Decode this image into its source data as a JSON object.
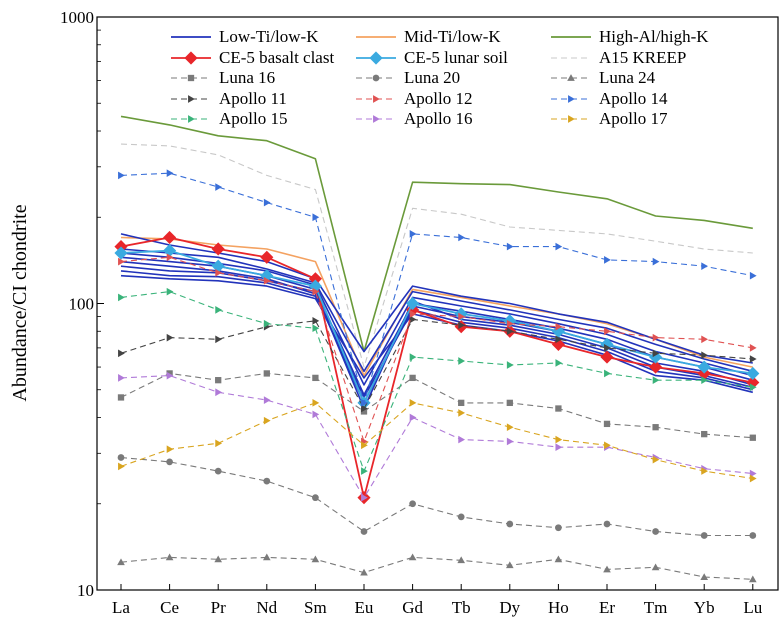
{
  "chart_data": {
    "type": "line",
    "title": "",
    "xlabel": "",
    "ylabel": "Abundance/CI chondrite",
    "yscale": "log",
    "ylim": [
      10,
      1000
    ],
    "yticks": [
      "10",
      "100",
      "1000"
    ],
    "grid": false,
    "legend_position": "top",
    "categories": [
      "La",
      "Ce",
      "Pr",
      "Nd",
      "Sm",
      "Eu",
      "Gd",
      "Tb",
      "Dy",
      "Ho",
      "Er",
      "Tm",
      "Yb",
      "Lu"
    ],
    "series": [
      {
        "name": "High-Al/high-K",
        "color": "#6a9a3a",
        "style": "solid",
        "marker": "none",
        "values": [
          450,
          420,
          385,
          370,
          320,
          68,
          265,
          262,
          260,
          245,
          232,
          202,
          195,
          183
        ]
      },
      {
        "name": "A15 KREEP",
        "color": "#c8c8c8",
        "style": "dashed",
        "marker": "none",
        "values": [
          360,
          355,
          330,
          280,
          250,
          60,
          215,
          205,
          185,
          180,
          175,
          165,
          155,
          150
        ]
      },
      {
        "name": "Mid-Ti/low-K",
        "color": "#f4a261",
        "style": "solid",
        "marker": "none",
        "values": [
          170,
          168,
          160,
          155,
          140,
          56,
          112,
          105,
          98,
          92,
          85,
          75,
          65,
          60
        ]
      },
      {
        "name": "Low-Ti/low-K",
        "color": "#2233bb",
        "style": "solid",
        "marker": "none",
        "group": "Low-Ti/low-K",
        "values": [
          175,
          160,
          150,
          140,
          122,
          68,
          115,
          106,
          100,
          92,
          86,
          75,
          66,
          62
        ]
      },
      {
        "name": "",
        "color": "#2233bb",
        "style": "solid",
        "marker": "none",
        "group": "Low-Ti/low-K",
        "values": [
          155,
          150,
          145,
          132,
          118,
          58,
          110,
          102,
          95,
          88,
          82,
          72,
          64,
          58
        ]
      },
      {
        "name": "",
        "color": "#2233bb",
        "style": "solid",
        "marker": "none",
        "group": "Low-Ti/low-K",
        "values": [
          150,
          145,
          138,
          130,
          116,
          52,
          105,
          98,
          92,
          85,
          78,
          68,
          62,
          56
        ]
      },
      {
        "name": "",
        "color": "#2233bb",
        "style": "solid",
        "marker": "none",
        "group": "Low-Ti/low-K",
        "values": [
          145,
          140,
          135,
          125,
          112,
          48,
          100,
          94,
          88,
          82,
          75,
          65,
          60,
          54
        ]
      },
      {
        "name": "",
        "color": "#2233bb",
        "style": "solid",
        "marker": "none",
        "group": "Low-Ti/low-K",
        "values": [
          140,
          135,
          130,
          122,
          108,
          45,
          98,
          90,
          86,
          80,
          72,
          62,
          58,
          52
        ]
      },
      {
        "name": "",
        "color": "#2233bb",
        "style": "solid",
        "marker": "none",
        "group": "Low-Ti/low-K",
        "values": [
          135,
          130,
          128,
          120,
          110,
          43,
          102,
          88,
          84,
          78,
          70,
          60,
          56,
          51
        ]
      },
      {
        "name": "",
        "color": "#2233bb",
        "style": "solid",
        "marker": "none",
        "group": "Low-Ti/low-K",
        "values": [
          130,
          125,
          124,
          118,
          106,
          47,
          95,
          86,
          82,
          76,
          68,
          58,
          55,
          50
        ]
      },
      {
        "name": "",
        "color": "#2233bb",
        "style": "solid",
        "marker": "none",
        "group": "Low-Ti/low-K",
        "values": [
          125,
          122,
          120,
          115,
          104,
          55,
          92,
          84,
          80,
          74,
          66,
          56,
          54,
          49
        ]
      },
      {
        "name": "CE-5 basalt clast",
        "color": "#e8262a",
        "style": "solid",
        "marker": "diamond",
        "values": [
          158,
          170,
          155,
          145,
          122,
          21,
          95,
          83,
          80,
          72,
          65,
          60,
          57,
          53
        ]
      },
      {
        "name": "CE-5 lunar soil",
        "color": "#3aaae0",
        "style": "solid",
        "marker": "diamond",
        "values": [
          150,
          153,
          135,
          125,
          115,
          45,
          100,
          92,
          87,
          80,
          72,
          65,
          60,
          57
        ]
      },
      {
        "name": "Luna 16",
        "color": "#7a7a7a",
        "style": "dashed",
        "marker": "square",
        "values": [
          47,
          57,
          54,
          57,
          55,
          42,
          55,
          45,
          45,
          43,
          38,
          37,
          35,
          34
        ]
      },
      {
        "name": "Luna 20",
        "color": "#7a7a7a",
        "style": "dashed",
        "marker": "circle",
        "values": [
          29,
          28,
          26,
          24,
          21,
          16,
          20,
          18,
          17,
          16.5,
          17,
          16,
          15.5,
          15.5
        ]
      },
      {
        "name": "Luna 24",
        "color": "#7a7a7a",
        "style": "dashed",
        "marker": "triangle-up",
        "values": [
          12.5,
          13,
          12.8,
          13,
          12.8,
          11.5,
          13,
          12.7,
          12.2,
          12.8,
          11.8,
          12,
          11.1,
          10.9
        ]
      },
      {
        "name": "Apollo 11",
        "color": "#444444",
        "style": "dashed",
        "marker": "triangle-right",
        "values": [
          67,
          76,
          75,
          83,
          87,
          43,
          88,
          84,
          80,
          75,
          70,
          67,
          66,
          64
        ]
      },
      {
        "name": "Apollo 12",
        "color": "#e05252",
        "style": "dashed",
        "marker": "triangle-right",
        "values": [
          140,
          145,
          128,
          120,
          110,
          33,
          92,
          90,
          85,
          83,
          80,
          76,
          75,
          70
        ]
      },
      {
        "name": "Apollo 14",
        "color": "#3a6fd8",
        "style": "dashed",
        "marker": "triangle-right",
        "values": [
          280,
          285,
          255,
          225,
          200,
          45,
          175,
          170,
          158,
          158,
          142,
          140,
          135,
          125
        ]
      },
      {
        "name": "Apollo 15",
        "color": "#3ab37a",
        "style": "dashed",
        "marker": "triangle-right",
        "values": [
          105,
          110,
          95,
          85,
          82,
          26,
          65,
          63,
          61,
          62,
          57,
          54,
          54,
          51
        ]
      },
      {
        "name": "Apollo 16",
        "color": "#b07ad8",
        "style": "dashed",
        "marker": "triangle-right",
        "values": [
          55,
          56,
          49,
          46,
          41,
          21,
          40,
          33.5,
          33,
          31.5,
          31.5,
          29,
          26.5,
          25.5
        ]
      },
      {
        "name": "Apollo 17",
        "color": "#d9a520",
        "style": "dashed",
        "marker": "triangle-right",
        "values": [
          27,
          31,
          32.5,
          39,
          45,
          32,
          45,
          41.5,
          37,
          33.5,
          32,
          28.5,
          26,
          24.5
        ]
      }
    ],
    "legend": [
      {
        "label": "Low-Ti/low-K",
        "color": "#2233bb",
        "style": "solid",
        "marker": "none"
      },
      {
        "label": "Mid-Ti/low-K",
        "color": "#f4a261",
        "style": "solid",
        "marker": "none"
      },
      {
        "label": "High-Al/high-K",
        "color": "#6a9a3a",
        "style": "solid",
        "marker": "none"
      },
      {
        "label": "CE-5 basalt clast",
        "color": "#e8262a",
        "style": "solid",
        "marker": "diamond"
      },
      {
        "label": "CE-5 lunar soil",
        "color": "#3aaae0",
        "style": "solid",
        "marker": "diamond"
      },
      {
        "label": "A15 KREEP",
        "color": "#c8c8c8",
        "style": "dashed",
        "marker": "none"
      },
      {
        "label": "Luna 16",
        "color": "#7a7a7a",
        "style": "dashed",
        "marker": "square"
      },
      {
        "label": "Luna 20",
        "color": "#7a7a7a",
        "style": "dashed",
        "marker": "circle"
      },
      {
        "label": "Luna 24",
        "color": "#7a7a7a",
        "style": "dashed",
        "marker": "triangle-up"
      },
      {
        "label": "Apollo 11",
        "color": "#444444",
        "style": "dashed",
        "marker": "triangle-right"
      },
      {
        "label": "Apollo 12",
        "color": "#e05252",
        "style": "dashed",
        "marker": "triangle-right"
      },
      {
        "label": "Apollo 14",
        "color": "#3a6fd8",
        "style": "dashed",
        "marker": "triangle-right"
      },
      {
        "label": "Apollo 15",
        "color": "#3ab37a",
        "style": "dashed",
        "marker": "triangle-right"
      },
      {
        "label": "Apollo 16",
        "color": "#b07ad8",
        "style": "dashed",
        "marker": "triangle-right"
      },
      {
        "label": "Apollo 17",
        "color": "#d9a520",
        "style": "dashed",
        "marker": "triangle-right"
      }
    ]
  }
}
